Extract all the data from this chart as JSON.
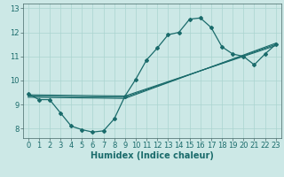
{
  "xlabel": "Humidex (Indice chaleur)",
  "bg_color": "#cce8e6",
  "grid_color": "#aad4d0",
  "line_color": "#1a6b6b",
  "xlim": [
    -0.5,
    23.5
  ],
  "ylim": [
    7.6,
    13.2
  ],
  "xticks": [
    0,
    1,
    2,
    3,
    4,
    5,
    6,
    7,
    8,
    9,
    10,
    11,
    12,
    13,
    14,
    15,
    16,
    17,
    18,
    19,
    20,
    21,
    22,
    23
  ],
  "yticks": [
    8,
    9,
    10,
    11,
    12,
    13
  ],
  "line1_x": [
    0,
    1,
    2,
    3,
    4,
    5,
    6,
    7,
    8,
    9,
    10,
    11,
    12,
    13,
    14,
    15,
    16,
    17,
    18,
    19,
    20,
    21,
    22,
    23
  ],
  "line1_y": [
    9.45,
    9.2,
    9.2,
    8.65,
    8.1,
    7.95,
    7.85,
    7.9,
    8.4,
    9.35,
    10.05,
    10.85,
    11.35,
    11.9,
    12.0,
    12.55,
    12.6,
    12.2,
    11.4,
    11.1,
    11.0,
    10.65,
    11.1,
    11.5
  ],
  "line2_x": [
    0,
    9,
    23
  ],
  "line2_y": [
    9.4,
    9.35,
    11.45
  ],
  "line3_x": [
    0,
    9,
    23
  ],
  "line3_y": [
    9.35,
    9.3,
    11.5
  ],
  "line4_x": [
    0,
    9,
    23
  ],
  "line4_y": [
    9.3,
    9.25,
    11.55
  ],
  "xlabel_fontsize": 7,
  "tick_fontsize": 6
}
